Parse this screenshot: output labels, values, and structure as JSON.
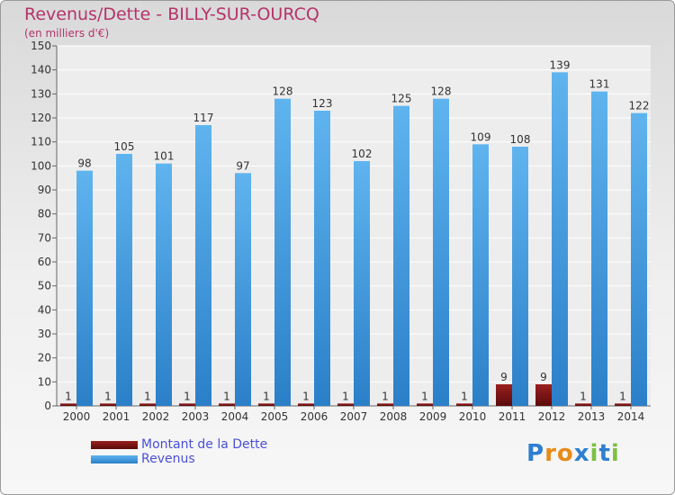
{
  "title": "Revenus/Dette - BILLY-SUR-OURCQ",
  "unit_note": "(en milliers d'€)",
  "logo_text": "Proxiti",
  "chart_data": {
    "type": "bar",
    "categories": [
      "2000",
      "2001",
      "2002",
      "2003",
      "2004",
      "2005",
      "2006",
      "2007",
      "2008",
      "2009",
      "2010",
      "2011",
      "2012",
      "2013",
      "2014"
    ],
    "series": [
      {
        "name": "Montant de la Dette",
        "values": [
          1,
          1,
          1,
          1,
          1,
          1,
          1,
          1,
          1,
          1,
          1,
          9,
          9,
          1,
          1
        ],
        "color": "#7a0f0f"
      },
      {
        "name": "Revenus",
        "values": [
          98,
          105,
          101,
          117,
          97,
          128,
          123,
          102,
          125,
          128,
          109,
          108,
          139,
          131,
          122
        ],
        "color": "#3d9be6"
      }
    ],
    "ylim": [
      0,
      150
    ],
    "yticks": [
      0,
      10,
      20,
      30,
      40,
      50,
      60,
      70,
      80,
      90,
      100,
      110,
      120,
      130,
      140,
      150
    ],
    "grid": true,
    "legend_position": "bottom-left"
  }
}
